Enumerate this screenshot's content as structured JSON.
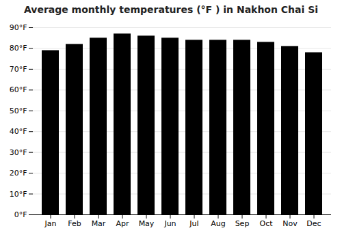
{
  "chart_data": {
    "type": "bar",
    "title": "Average monthly temperatures (°F ) in Nakhon Chai Si",
    "categories": [
      "Jan",
      "Feb",
      "Mar",
      "Apr",
      "May",
      "Jun",
      "Jul",
      "Aug",
      "Sep",
      "Oct",
      "Nov",
      "Dec"
    ],
    "values": [
      79,
      82,
      85,
      87,
      86,
      85,
      84,
      84,
      84,
      83,
      81,
      78
    ],
    "ylim": [
      0,
      90
    ],
    "yticks": [
      {
        "value": 0,
        "label": "0°F"
      },
      {
        "value": 10,
        "label": "10°F"
      },
      {
        "value": 20,
        "label": "20°F"
      },
      {
        "value": 30,
        "label": "30°F"
      },
      {
        "value": 40,
        "label": "40°F"
      },
      {
        "value": 50,
        "label": "50°F"
      },
      {
        "value": 60,
        "label": "60°F"
      },
      {
        "value": 70,
        "label": "70°F"
      },
      {
        "value": 80,
        "label": "80°F"
      },
      {
        "value": 90,
        "label": "90°F"
      }
    ],
    "grid": true
  }
}
